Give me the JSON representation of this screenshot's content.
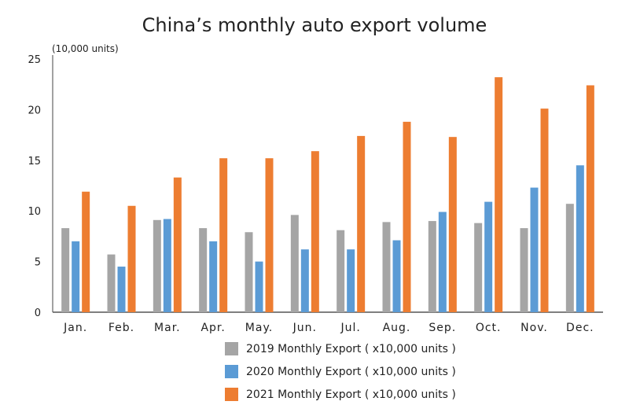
{
  "chart_data": {
    "type": "bar",
    "title": "China’s monthly auto export volume",
    "ylabel": "(10,000 units)",
    "ylim": [
      0,
      25
    ],
    "yticks": [
      0,
      5,
      10,
      15,
      20,
      25
    ],
    "grid": false,
    "legend_position": "bottom",
    "categories": [
      "Jan.",
      "Feb.",
      "Mar.",
      "Apr.",
      "May.",
      "Jun.",
      "Jul.",
      "Aug.",
      "Sep.",
      "Oct.",
      "Nov.",
      "Dec."
    ],
    "series": [
      {
        "name": "2019 Monthly Export ( x10,000 units )",
        "color": "#a5a5a5",
        "values": [
          8.3,
          5.7,
          9.1,
          8.3,
          7.9,
          9.6,
          8.1,
          8.9,
          9.0,
          8.8,
          8.3,
          10.7
        ]
      },
      {
        "name": "2020 Monthly Export ( x10,000 units )",
        "color": "#5b9bd5",
        "values": [
          7.0,
          4.5,
          9.2,
          7.0,
          5.0,
          6.2,
          6.2,
          7.1,
          9.9,
          10.9,
          12.3,
          14.5
        ]
      },
      {
        "name": "2021 Monthly Export ( x10,000 units )",
        "color": "#ed7d31",
        "values": [
          11.9,
          10.5,
          13.3,
          15.2,
          15.2,
          15.9,
          17.4,
          18.8,
          17.3,
          23.2,
          20.1,
          22.4
        ]
      }
    ]
  }
}
